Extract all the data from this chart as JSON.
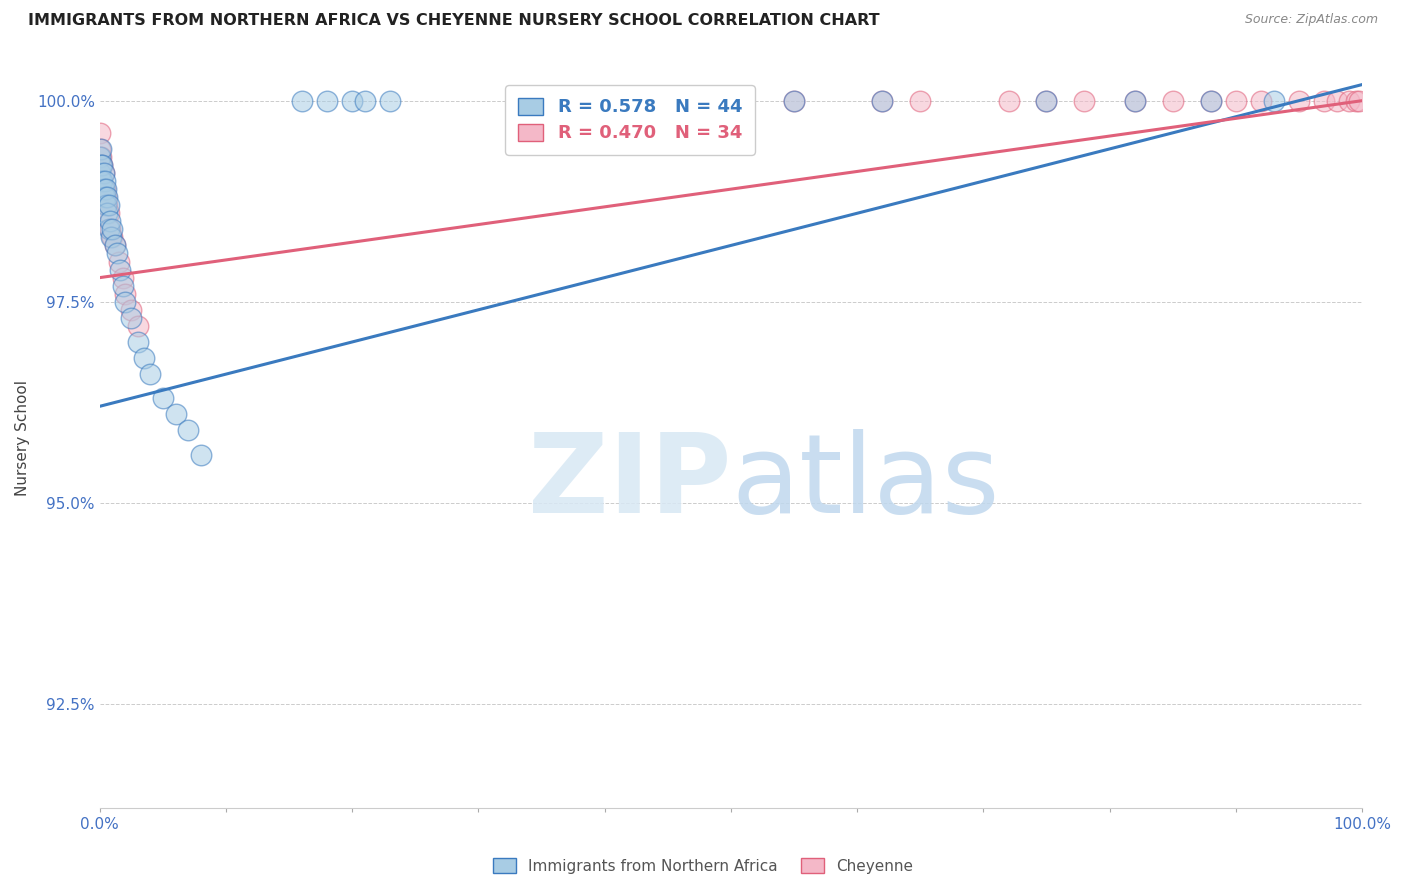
{
  "title": "IMMIGRANTS FROM NORTHERN AFRICA VS CHEYENNE NURSERY SCHOOL CORRELATION CHART",
  "source": "Source: ZipAtlas.com",
  "ylabel": "Nursery School",
  "yaxis_labels": [
    "100.0%",
    "97.5%",
    "95.0%",
    "92.5%"
  ],
  "xlim": [
    0.0,
    1.0
  ],
  "ylim": [
    0.912,
    1.004
  ],
  "yticks": [
    1.0,
    0.975,
    0.95,
    0.925
  ],
  "legend_label1": "Immigrants from Northern Africa",
  "legend_label2": "Cheyenne",
  "R1": 0.578,
  "N1": 44,
  "R2": 0.47,
  "N2": 34,
  "blue_color": "#a8cce4",
  "pink_color": "#f4b8c8",
  "blue_line_color": "#3a7abf",
  "pink_line_color": "#e0607a",
  "blue_scatter_x": [
    0.0,
    0.0,
    0.001,
    0.001,
    0.001,
    0.002,
    0.002,
    0.003,
    0.003,
    0.004,
    0.004,
    0.005,
    0.005,
    0.006,
    0.006,
    0.007,
    0.007,
    0.008,
    0.009,
    0.01,
    0.012,
    0.014,
    0.016,
    0.018,
    0.02,
    0.025,
    0.03,
    0.035,
    0.04,
    0.05,
    0.06,
    0.07,
    0.08,
    0.16,
    0.18,
    0.2,
    0.21,
    0.23,
    0.55,
    0.62,
    0.75,
    0.82,
    0.88,
    0.93
  ],
  "blue_scatter_y": [
    0.993,
    0.991,
    0.994,
    0.992,
    0.99,
    0.992,
    0.99,
    0.991,
    0.989,
    0.99,
    0.988,
    0.989,
    0.987,
    0.988,
    0.986,
    0.987,
    0.984,
    0.985,
    0.983,
    0.984,
    0.982,
    0.981,
    0.979,
    0.977,
    0.975,
    0.973,
    0.97,
    0.968,
    0.966,
    0.963,
    0.961,
    0.959,
    0.956,
    1.0,
    1.0,
    1.0,
    1.0,
    1.0,
    1.0,
    1.0,
    1.0,
    1.0,
    1.0,
    1.0
  ],
  "pink_scatter_x": [
    0.0,
    0.0,
    0.001,
    0.002,
    0.003,
    0.004,
    0.005,
    0.006,
    0.007,
    0.008,
    0.01,
    0.012,
    0.015,
    0.018,
    0.02,
    0.025,
    0.03,
    0.55,
    0.62,
    0.65,
    0.72,
    0.75,
    0.78,
    0.82,
    0.85,
    0.88,
    0.9,
    0.92,
    0.95,
    0.97,
    0.98,
    0.99,
    0.995,
    0.998
  ],
  "pink_scatter_y": [
    0.996,
    0.994,
    0.993,
    0.992,
    0.991,
    0.989,
    0.988,
    0.987,
    0.986,
    0.984,
    0.983,
    0.982,
    0.98,
    0.978,
    0.976,
    0.974,
    0.972,
    1.0,
    1.0,
    1.0,
    1.0,
    1.0,
    1.0,
    1.0,
    1.0,
    1.0,
    1.0,
    1.0,
    1.0,
    1.0,
    1.0,
    1.0,
    1.0,
    1.0
  ],
  "blue_trend_x": [
    0.0,
    1.0
  ],
  "blue_trend_y": [
    0.962,
    1.002
  ],
  "pink_trend_x": [
    0.0,
    1.0
  ],
  "pink_trend_y": [
    0.978,
    1.0
  ],
  "watermark_zip": "ZIP",
  "watermark_atlas": "atlas",
  "background_color": "#ffffff",
  "grid_color": "#cccccc"
}
